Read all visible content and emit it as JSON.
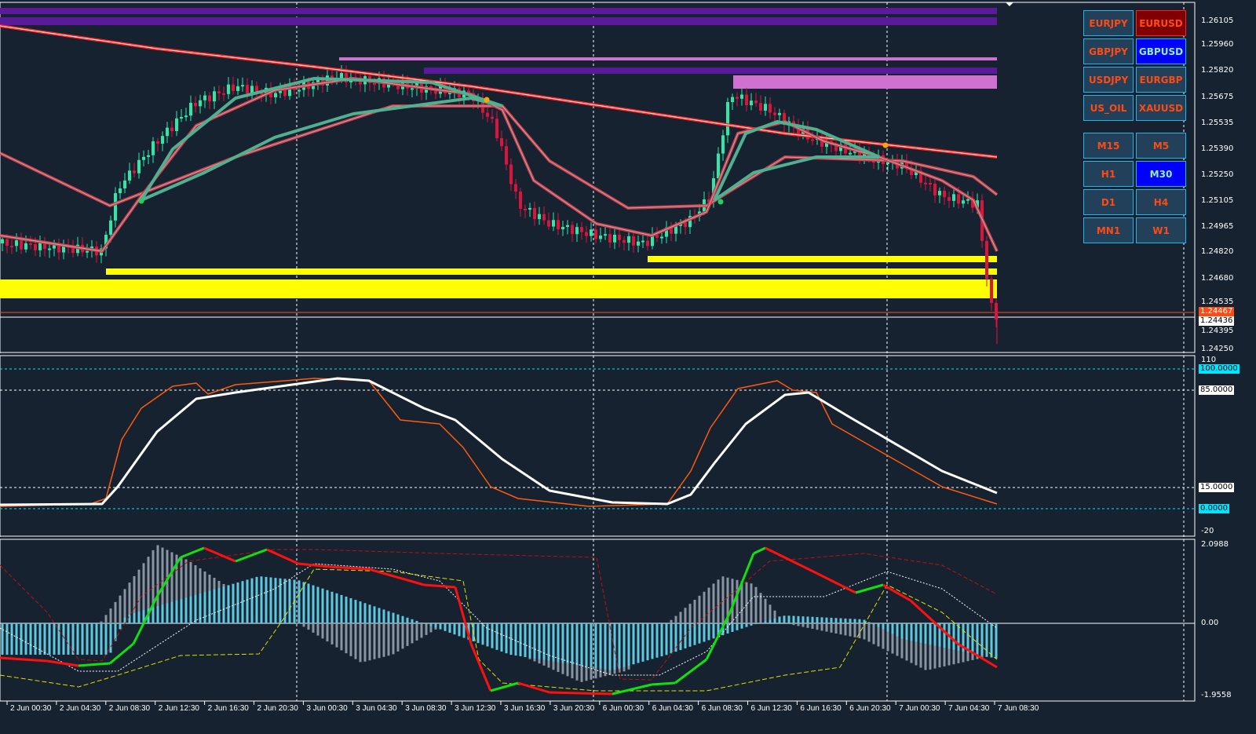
{
  "symbol_buttons": [
    {
      "label": "EURJPY",
      "state": "normal"
    },
    {
      "label": "EURUSD",
      "state": "active-red"
    },
    {
      "label": "GBPJPY",
      "state": "normal"
    },
    {
      "label": "GBPUSD",
      "state": "active-blue"
    },
    {
      "label": "USDJPY",
      "state": "normal"
    },
    {
      "label": "EURGBP",
      "state": "normal"
    },
    {
      "label": "US_OIL",
      "state": "normal"
    },
    {
      "label": "XAUUSD",
      "state": "normal"
    }
  ],
  "timeframe_buttons": [
    {
      "label": "M15",
      "state": "normal"
    },
    {
      "label": "M5",
      "state": "normal"
    },
    {
      "label": "H1",
      "state": "normal"
    },
    {
      "label": "M30",
      "state": "active-blue"
    },
    {
      "label": "D1",
      "state": "normal"
    },
    {
      "label": "H4",
      "state": "normal"
    },
    {
      "label": "MN1",
      "state": "normal"
    },
    {
      "label": "W1",
      "state": "normal"
    }
  ],
  "price_axis": [
    "1.26105",
    "1.25960",
    "1.25820",
    "1.25675",
    "1.25535",
    "1.25390",
    "1.25250",
    "1.25105",
    "1.24965",
    "1.24820",
    "1.24680",
    "1.24535",
    "1.24395",
    "1.24250"
  ],
  "price_tags": {
    "bid": "1.24467",
    "current": "1.24436"
  },
  "stoch_axis": {
    "max": "110",
    "level_100": "100.0000",
    "level_85": "85.0000",
    "level_15": "15.0000",
    "level_0": "0.0000",
    "min": "-20"
  },
  "macd_axis": {
    "max": "2.0988",
    "zero": "0.00",
    "min": "-1.9558"
  },
  "time_axis": [
    "2 Jun 00:30",
    "2 Jun 04:30",
    "2 Jun 08:30",
    "2 Jun 12:30",
    "2 Jun 16:30",
    "2 Jun 20:30",
    "3 Jun 00:30",
    "3 Jun 04:30",
    "3 Jun 08:30",
    "3 Jun 12:30",
    "3 Jun 16:30",
    "3 Jun 20:30",
    "6 Jun 00:30",
    "6 Jun 04:30",
    "6 Jun 08:30",
    "6 Jun 12:30",
    "6 Jun 16:30",
    "6 Jun 20:30",
    "7 Jun 00:30",
    "7 Jun 04:30",
    "7 Jun 08:30"
  ],
  "colors": {
    "bull": "#2ee8a8",
    "bear": "#dc143c",
    "background": "#16222f",
    "accent": "#ff4a12",
    "cyan": "#00e5ff",
    "yellow": "#ffff00"
  }
}
